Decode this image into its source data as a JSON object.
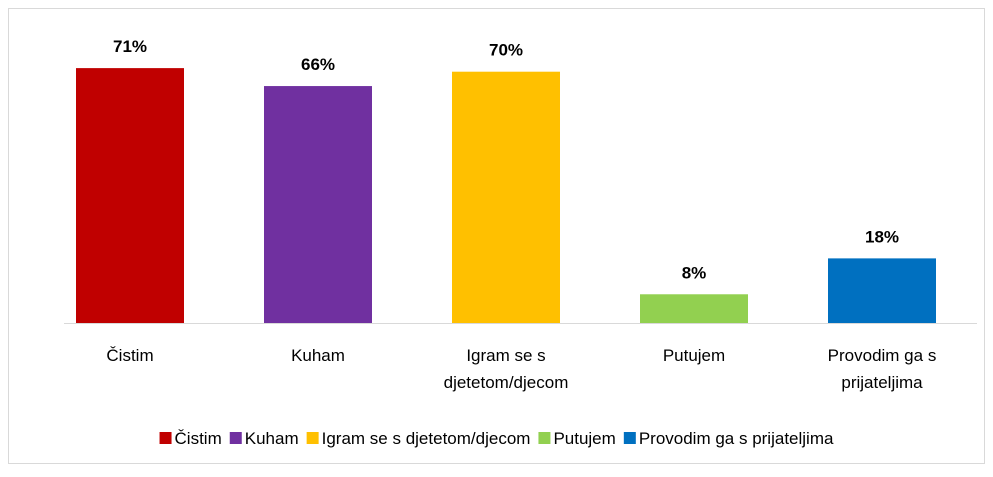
{
  "chart_data": {
    "type": "bar",
    "categories": [
      "Čistim",
      "Kuham",
      "Igram se s djetetom/djecom",
      "Putujem",
      "Provodim ga s prijateljima"
    ],
    "values": [
      71,
      66,
      70,
      8,
      18
    ],
    "value_labels": [
      "71%",
      "66%",
      "70%",
      "8%",
      "18%"
    ],
    "colors": [
      "#c00000",
      "#7030a0",
      "#ffc000",
      "#92d050",
      "#0070c0"
    ],
    "legend": "bottom"
  }
}
